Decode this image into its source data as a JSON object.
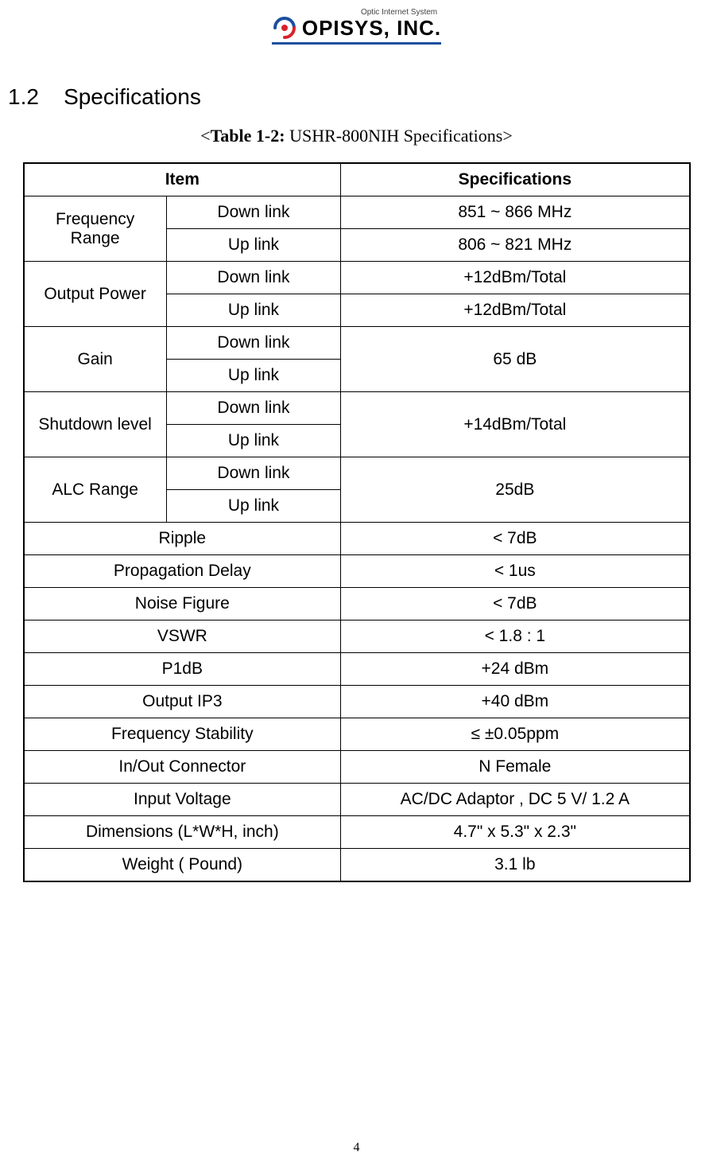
{
  "logo": {
    "tagline": "Optic Internet System",
    "company": "OPISYS, INC."
  },
  "section": {
    "number": "1.2",
    "title": "Specifications"
  },
  "caption": {
    "prefix": "<",
    "bold": "Table 1-2:",
    "rest": " USHR-800NIH Specifications>",
    "full_bold_part": "Table 1-2:",
    "full_rest_part": " USHR-800NIH Specifications"
  },
  "table": {
    "header": {
      "item": "Item",
      "spec": "Specifications"
    },
    "dual_rows": [
      {
        "category": "Frequency Range",
        "sub1": "Down link",
        "val1": "851 ~ 866 MHz",
        "sub2": "Up link",
        "val2": "806 ~ 821 MHz",
        "merged_val": false
      },
      {
        "category": "Output Power",
        "sub1": "Down link",
        "val1": "+12dBm/Total",
        "sub2": "Up link",
        "val2": "+12dBm/Total",
        "merged_val": false
      },
      {
        "category": "Gain",
        "sub1": "Down link",
        "val1": "65 dB",
        "sub2": "Up link",
        "val2": "",
        "merged_val": true
      },
      {
        "category": "Shutdown level",
        "sub1": "Down link",
        "val1": "+14dBm/Total",
        "sub2": "Up link",
        "val2": "",
        "merged_val": true
      },
      {
        "category": "ALC Range",
        "sub1": "Down link",
        "val1": "25dB",
        "sub2": "Up link",
        "val2": "",
        "merged_val": true
      }
    ],
    "single_rows": [
      {
        "item": "Ripple",
        "spec": "< 7dB"
      },
      {
        "item": "Propagation Delay",
        "spec": "< 1us"
      },
      {
        "item": "Noise Figure",
        "spec": "< 7dB"
      },
      {
        "item": "VSWR",
        "spec": "< 1.8 : 1"
      },
      {
        "item": "P1dB",
        "spec": "+24 dBm"
      },
      {
        "item": "Output IP3",
        "spec": "+40 dBm"
      },
      {
        "item": "Frequency Stability",
        "spec": "≤ ±0.05ppm"
      },
      {
        "item": "In/Out Connector",
        "spec": "N Female"
      },
      {
        "item": "Input Voltage",
        "spec": "AC/DC Adaptor , DC 5 V/ 1.2 A"
      },
      {
        "item": "Dimensions (L*W*H, inch)",
        "spec": "4.7\" x 5.3\" x 2.3\""
      },
      {
        "item": "Weight ( Pound)",
        "spec": "3.1 lb"
      }
    ]
  },
  "page_number": "4",
  "colors": {
    "border": "#000000",
    "text": "#000000",
    "logo_accent": "#1a4fa0",
    "logo_red": "#d8232a"
  }
}
